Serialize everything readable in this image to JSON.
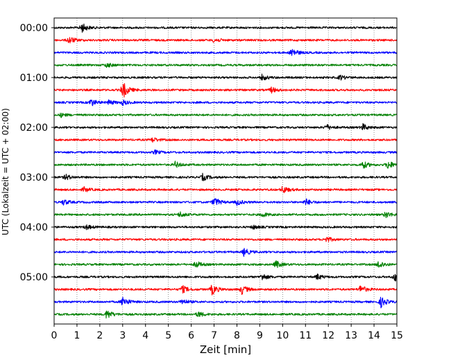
{
  "chart_data": {
    "type": "line",
    "subtype": "helicorder",
    "xlabel": "Zeit  [min]",
    "ylabel": "UTC (Lokalzeit = UTC + 02:00)",
    "xlim": [
      0,
      15
    ],
    "xticks": [
      0,
      1,
      2,
      3,
      4,
      5,
      6,
      7,
      8,
      9,
      10,
      11,
      12,
      13,
      14,
      15
    ],
    "vertical_gridlines": true,
    "row_interval_minutes": 15,
    "row_labels": [
      "00:00",
      "01:00",
      "02:00",
      "03:00",
      "04:00",
      "05:00"
    ],
    "rows": [
      {
        "start": "00:00",
        "color": "#000000",
        "events": [
          [
            1.2,
            1.0
          ]
        ]
      },
      {
        "start": "00:15",
        "color": "#ff0000",
        "events": [
          [
            0.65,
            0.8
          ],
          [
            7.0,
            0.5
          ]
        ]
      },
      {
        "start": "00:30",
        "color": "#0000ff",
        "events": [
          [
            10.4,
            1.0
          ]
        ]
      },
      {
        "start": "00:45",
        "color": "#008000",
        "events": [
          [
            2.3,
            0.5
          ]
        ]
      },
      {
        "start": "01:00",
        "color": "#000000",
        "events": [
          [
            9.1,
            0.6
          ],
          [
            12.5,
            0.5
          ]
        ]
      },
      {
        "start": "01:15",
        "color": "#ff0000",
        "events": [
          [
            3.0,
            1.8
          ],
          [
            9.5,
            0.6
          ]
        ]
      },
      {
        "start": "01:30",
        "color": "#0000ff",
        "events": [
          [
            1.6,
            0.8
          ],
          [
            2.4,
            0.5
          ],
          [
            3.0,
            0.5
          ]
        ]
      },
      {
        "start": "01:45",
        "color": "#008000",
        "events": [
          [
            0.3,
            0.4
          ]
        ]
      },
      {
        "start": "02:00",
        "color": "#000000",
        "events": [
          [
            11.9,
            0.6
          ],
          [
            13.5,
            0.7
          ]
        ]
      },
      {
        "start": "02:15",
        "color": "#ff0000",
        "events": [
          [
            4.3,
            0.5
          ]
        ]
      },
      {
        "start": "02:30",
        "color": "#0000ff",
        "events": [
          [
            4.4,
            0.4
          ]
        ]
      },
      {
        "start": "02:45",
        "color": "#008000",
        "events": [
          [
            5.3,
            0.6
          ],
          [
            13.5,
            0.8
          ],
          [
            14.6,
            0.9
          ]
        ]
      },
      {
        "start": "03:00",
        "color": "#000000",
        "events": [
          [
            0.5,
            0.6
          ],
          [
            6.5,
            0.7
          ]
        ]
      },
      {
        "start": "03:15",
        "color": "#ff0000",
        "events": [
          [
            1.3,
            0.5
          ],
          [
            10.0,
            0.8
          ]
        ]
      },
      {
        "start": "03:30",
        "color": "#0000ff",
        "events": [
          [
            0.4,
            0.6
          ],
          [
            7.0,
            1.0
          ],
          [
            8.0,
            0.6
          ],
          [
            11.0,
            0.7
          ]
        ]
      },
      {
        "start": "03:45",
        "color": "#008000",
        "events": [
          [
            5.5,
            0.6
          ],
          [
            9.1,
            0.5
          ],
          [
            14.5,
            0.7
          ]
        ]
      },
      {
        "start": "04:00",
        "color": "#000000",
        "events": [
          [
            1.4,
            0.5
          ],
          [
            8.7,
            0.4
          ]
        ]
      },
      {
        "start": "04:15",
        "color": "#ff0000",
        "events": [
          [
            11.9,
            0.6
          ]
        ]
      },
      {
        "start": "04:30",
        "color": "#0000ff",
        "events": [
          [
            8.3,
            0.8
          ]
        ]
      },
      {
        "start": "04:45",
        "color": "#008000",
        "events": [
          [
            6.2,
            0.7
          ],
          [
            9.7,
            0.8
          ],
          [
            14.2,
            0.9
          ]
        ]
      },
      {
        "start": "05:00",
        "color": "#000000",
        "events": [
          [
            9.1,
            0.7
          ],
          [
            11.5,
            0.6
          ],
          [
            14.9,
            0.9
          ]
        ]
      },
      {
        "start": "05:15",
        "color": "#ff0000",
        "events": [
          [
            5.6,
            0.8
          ],
          [
            6.9,
            1.1
          ],
          [
            8.2,
            1.0
          ],
          [
            13.4,
            0.9
          ]
        ]
      },
      {
        "start": "05:30",
        "color": "#0000ff",
        "events": [
          [
            3.0,
            1.1
          ],
          [
            5.6,
            0.6
          ],
          [
            14.3,
            1.1
          ]
        ]
      },
      {
        "start": "05:45",
        "color": "#008000",
        "events": [
          [
            2.3,
            1.0
          ],
          [
            6.3,
            0.6
          ]
        ]
      }
    ]
  }
}
